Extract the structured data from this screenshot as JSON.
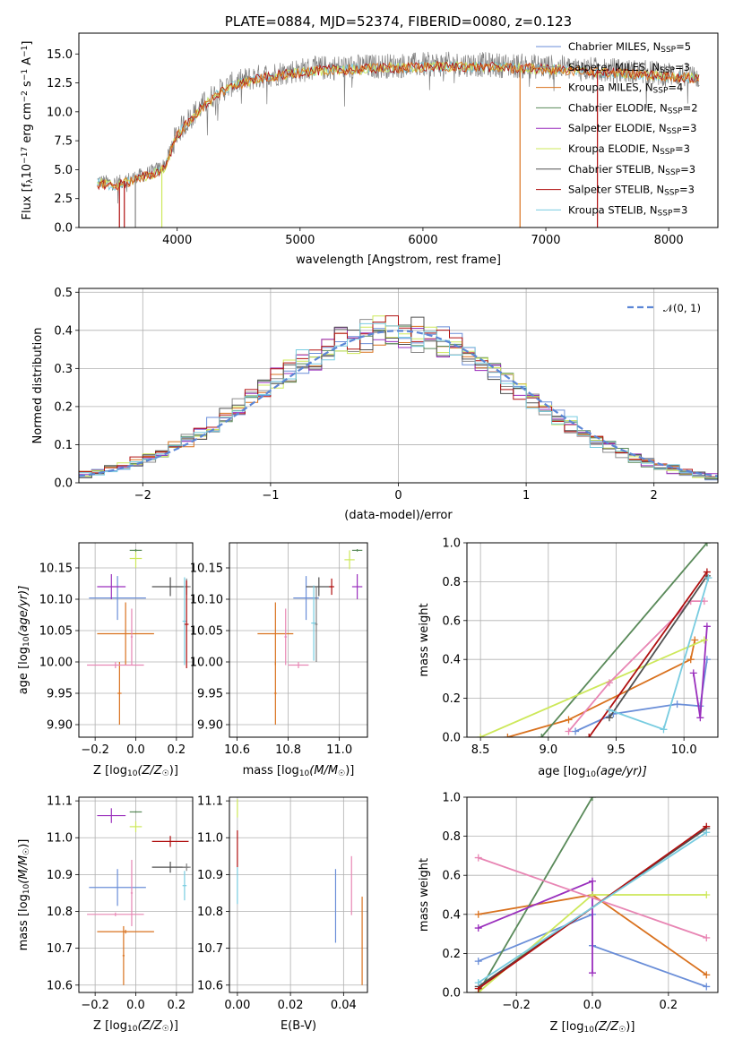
{
  "figure_title": "PLATE=0884, MJD=52374, FIBERID=0080, z=0.123",
  "colors": {
    "Chabrier MILES": "#6a8ed8",
    "Salpeter MILES": "#8c8c8c",
    "Kroupa MILES": "#d9721f",
    "Chabrier ELODIE": "#5a8a5a",
    "Salpeter ELODIE": "#9a2fbd",
    "Kroupa ELODIE": "#cde85a",
    "Chabrier STELIB": "#505050",
    "Salpeter STELIB": "#b01010",
    "Kroupa STELIB": "#78cce0",
    "pink": "#e886b4",
    "data": "#808080"
  },
  "chart_data": [
    {
      "id": "spectrum",
      "type": "line",
      "title": "PLATE=0884, MJD=52374, FIBERID=0080, z=0.123",
      "xlabel": "wavelength [Angstrom, rest frame]",
      "ylabel_main": "Flux [f",
      "ylabel_sub1": "λ",
      "ylabel_mid": "10",
      "ylabel_sup1": "−17",
      "ylabel_rest": " erg cm",
      "ylabel_sup2": "−2",
      "ylabel_rest2": " s",
      "ylabel_sup3": "−1",
      "ylabel_rest3": " A",
      "ylabel_sup4": "−1",
      "ylabel_end": "]",
      "xlim": [
        3200,
        8400
      ],
      "ylim": [
        0,
        16.8
      ],
      "xticks": [
        "4000",
        "5000",
        "6000",
        "7000",
        "8000"
      ],
      "yticks": [
        "0.0",
        "2.5",
        "5.0",
        "7.5",
        "10.0",
        "12.5",
        "15.0"
      ],
      "continuum": {
        "x": [
          3350,
          3500,
          3650,
          3800,
          3900,
          4000,
          4150,
          4300,
          4450,
          4600,
          4800,
          5000,
          5200,
          5500,
          5800,
          6100,
          6400,
          6700,
          7000,
          7300,
          7500,
          7800,
          8100,
          8250
        ],
        "y": [
          4.0,
          3.8,
          4.3,
          4.8,
          5.4,
          8.2,
          10.0,
          11.5,
          12.4,
          12.9,
          13.3,
          13.6,
          13.8,
          13.9,
          14.0,
          14.1,
          14.1,
          14.0,
          13.9,
          13.7,
          13.6,
          13.4,
          13.2,
          13.0
        ]
      },
      "legend": [
        {
          "label": "Chabrier MILES, N",
          "sub": "SSP",
          "n": "=5"
        },
        {
          "label": "Salpeter MILES, N",
          "sub": "SSP",
          "n": "=3"
        },
        {
          "label": "Kroupa MILES, N",
          "sub": "SSP",
          "n": "=4"
        },
        {
          "label": "Chabrier ELODIE, N",
          "sub": "SSP",
          "n": "=2"
        },
        {
          "label": "Salpeter ELODIE, N",
          "sub": "SSP",
          "n": "=3"
        },
        {
          "label": "Kroupa ELODIE, N",
          "sub": "SSP",
          "n": "=3"
        },
        {
          "label": "Chabrier STELIB, N",
          "sub": "SSP",
          "n": "=3"
        },
        {
          "label": "Salpeter STELIB, N",
          "sub": "SSP",
          "n": "=3"
        },
        {
          "label": "Kroupa STELIB, N",
          "sub": "SSP",
          "n": "=3"
        }
      ]
    },
    {
      "id": "residuals",
      "type": "histogram",
      "xlabel": "(data-model)/error",
      "ylabel": "Normed distribution",
      "xlim": [
        -2.5,
        2.5
      ],
      "ylim": [
        0,
        0.51
      ],
      "xticks": [
        "−2",
        "−1",
        "0",
        "1",
        "2"
      ],
      "yticks": [
        "0.0",
        "0.1",
        "0.2",
        "0.3",
        "0.4",
        "0.5"
      ],
      "legend_label": "𝒩(0, 1)",
      "bin_width": 0.1
    },
    {
      "id": "age-vs-Z",
      "type": "errorbar",
      "xlabel": "Z [log",
      "xlabel_sub": "10",
      "xlabel_rest": "(Z/Z",
      "xlabel_sub2": "☉",
      "xlabel_end": ")]",
      "ylabel": "age  [log",
      "ylabel_sub": "10",
      "ylabel_rest": "(age/yr)]",
      "xlim": [
        -0.28,
        0.28
      ],
      "ylim": [
        9.88,
        10.19
      ],
      "xticks": [
        "−0.2",
        "0.0",
        "0.2"
      ],
      "yticks": [
        "9.90",
        "9.95",
        "10.00",
        "10.05",
        "10.10",
        "10.15"
      ],
      "points": [
        {
          "x": -0.09,
          "y": 10.102,
          "xerr": 0.14,
          "yerr": 0.035,
          "c": "#6a8ed8"
        },
        {
          "x": -0.12,
          "y": 10.12,
          "xerr": 0.07,
          "yerr": 0.02,
          "c": "#9a2fbd"
        },
        {
          "x": 0.0,
          "y": 10.165,
          "xerr": 0.03,
          "yerr": 0.015,
          "c": "#cde85a"
        },
        {
          "x": 0.0,
          "y": 10.178,
          "xerr": 0.03,
          "yerr": 0.002,
          "c": "#5a8a5a"
        },
        {
          "x": 0.17,
          "y": 10.12,
          "xerr": 0.09,
          "yerr": 0.015,
          "c": "#505050"
        },
        {
          "x": 0.25,
          "y": 10.12,
          "xerr": 0.02,
          "yerr": 0.013,
          "c": "#808080"
        },
        {
          "x": 0.24,
          "y": 10.065,
          "xerr": 0.01,
          "yerr": 0.07,
          "c": "#78cce0"
        },
        {
          "x": 0.25,
          "y": 10.06,
          "xerr": 0.01,
          "yerr": 0.07,
          "c": "#b01010"
        },
        {
          "x": -0.05,
          "y": 10.045,
          "xerr": 0.14,
          "yerr": 0.05,
          "c": "#d9721f"
        },
        {
          "x": -0.08,
          "y": 9.95,
          "xerr": 0.01,
          "yerr": 0.05,
          "c": "#d9721f"
        },
        {
          "x": -0.1,
          "y": 9.995,
          "xerr": 0.14,
          "yerr": 0.005,
          "c": "#e886b4"
        },
        {
          "x": -0.02,
          "y": 10.04,
          "xerr": 0.005,
          "yerr": 0.045,
          "c": "#e886b4"
        }
      ]
    },
    {
      "id": "age-vs-mass",
      "type": "errorbar",
      "xlabel": "mass [log",
      "xlabel_sub": "10",
      "xlabel_rest": "(M/M",
      "xlabel_sub2": "☉",
      "xlabel_end": ")]",
      "xlim": [
        10.57,
        11.11
      ],
      "ylim": [
        9.88,
        10.19
      ],
      "xticks": [
        "10.6",
        "10.8",
        "11.0"
      ],
      "yticks": [
        "9.90",
        "9.95",
        "10.00",
        "10.05",
        "10.10",
        "10.15"
      ],
      "points": [
        {
          "x": 10.87,
          "y": 10.102,
          "xerr": 0.05,
          "yerr": 0.035,
          "c": "#6a8ed8"
        },
        {
          "x": 11.07,
          "y": 10.12,
          "xerr": 0.02,
          "yerr": 0.02,
          "c": "#9a2fbd"
        },
        {
          "x": 11.04,
          "y": 10.163,
          "xerr": 0.02,
          "yerr": 0.015,
          "c": "#cde85a"
        },
        {
          "x": 11.07,
          "y": 10.178,
          "xerr": 0.02,
          "yerr": 0.002,
          "c": "#5a8a5a"
        },
        {
          "x": 10.92,
          "y": 10.12,
          "xerr": 0.05,
          "yerr": 0.015,
          "c": "#505050"
        },
        {
          "x": 10.97,
          "y": 10.12,
          "xerr": 0.01,
          "yerr": 0.013,
          "c": "#b01010"
        },
        {
          "x": 10.9,
          "y": 10.062,
          "xerr": 0.01,
          "yerr": 0.06,
          "c": "#78cce0"
        },
        {
          "x": 10.75,
          "y": 10.045,
          "xerr": 0.07,
          "yerr": 0.05,
          "c": "#d9721f"
        },
        {
          "x": 10.75,
          "y": 9.95,
          "xerr": 0.005,
          "yerr": 0.05,
          "c": "#d9721f"
        },
        {
          "x": 10.84,
          "y": 9.995,
          "xerr": 0.04,
          "yerr": 0.005,
          "c": "#e886b4"
        },
        {
          "x": 10.79,
          "y": 10.04,
          "xerr": 0.005,
          "yerr": 0.045,
          "c": "#e886b4"
        },
        {
          "x": 10.91,
          "y": 10.06,
          "xerr": 0.005,
          "yerr": 0.06,
          "c": "#808080"
        }
      ]
    },
    {
      "id": "massweight-vs-age",
      "type": "line",
      "xlabel": "age  [log",
      "xlabel_sub": "10",
      "xlabel_rest": "(age/yr)]",
      "ylabel": "mass weight",
      "xlim": [
        8.4,
        10.25
      ],
      "ylim": [
        0,
        1
      ],
      "xticks": [
        "8.5",
        "9.0",
        "9.5",
        "10.0"
      ],
      "yticks": [
        "0.0",
        "0.2",
        "0.4",
        "0.6",
        "0.8",
        "1.0"
      ],
      "series": [
        {
          "c": "#6a8ed8",
          "x": [
            9.2,
            9.48,
            9.95,
            10.12,
            10.17
          ],
          "y": [
            0.03,
            0.12,
            0.17,
            0.16,
            0.4
          ]
        },
        {
          "c": "#d9721f",
          "x": [
            8.7,
            9.15,
            10.05,
            10.08
          ],
          "y": [
            0.0,
            0.09,
            0.4,
            0.5
          ]
        },
        {
          "c": "#5a8a5a",
          "x": [
            8.95,
            10.17
          ],
          "y": [
            0.0,
            1.0
          ]
        },
        {
          "c": "#9a2fbd",
          "x": [
            10.07,
            10.12,
            10.17
          ],
          "y": [
            0.33,
            0.1,
            0.57
          ]
        },
        {
          "c": "#cde85a",
          "x": [
            8.5,
            10.15
          ],
          "y": [
            0.0,
            0.5
          ]
        },
        {
          "c": "#e886b4",
          "x": [
            9.15,
            9.45,
            10.05,
            10.15
          ],
          "y": [
            0.03,
            0.28,
            0.7,
            0.7
          ]
        },
        {
          "c": "#505050",
          "x": [
            9.45,
            10.17
          ],
          "y": [
            0.1,
            0.83
          ]
        },
        {
          "c": "#b01010",
          "x": [
            9.3,
            10.17
          ],
          "y": [
            0.0,
            0.85
          ]
        },
        {
          "c": "#78cce0",
          "x": [
            9.45,
            9.85,
            10.18
          ],
          "y": [
            0.14,
            0.04,
            0.82
          ]
        }
      ]
    },
    {
      "id": "mass-vs-Z",
      "type": "errorbar",
      "xlabel": "Z [log",
      "xlabel_sub": "10",
      "xlabel_rest": "(Z/Z",
      "xlabel_sub2": "☉",
      "xlabel_end": ")]",
      "ylabel": "mass [log",
      "ylabel_sub": "10",
      "ylabel_rest": "(M/M",
      "ylabel_sub2": "☉",
      "ylabel_end": ")]",
      "xlim": [
        -0.28,
        0.28
      ],
      "ylim": [
        10.58,
        11.11
      ],
      "xticks": [
        "−0.2",
        "0.0",
        "0.2"
      ],
      "yticks": [
        "10.6",
        "10.7",
        "10.8",
        "10.9",
        "11.0",
        "11.1"
      ],
      "points": [
        {
          "x": -0.09,
          "y": 10.865,
          "xerr": 0.14,
          "yerr": 0.05,
          "c": "#6a8ed8"
        },
        {
          "x": -0.12,
          "y": 11.06,
          "xerr": 0.07,
          "yerr": 0.02,
          "c": "#9a2fbd"
        },
        {
          "x": 0.0,
          "y": 11.03,
          "xerr": 0.03,
          "yerr": 0.015,
          "c": "#cde85a"
        },
        {
          "x": 0.0,
          "y": 11.07,
          "xerr": 0.03,
          "yerr": 0.002,
          "c": "#5a8a5a"
        },
        {
          "x": 0.17,
          "y": 10.92,
          "xerr": 0.09,
          "yerr": 0.015,
          "c": "#505050"
        },
        {
          "x": 0.17,
          "y": 10.99,
          "xerr": 0.09,
          "yerr": 0.015,
          "c": "#b01010"
        },
        {
          "x": 0.25,
          "y": 10.92,
          "xerr": 0.02,
          "yerr": 0.01,
          "c": "#808080"
        },
        {
          "x": 0.24,
          "y": 10.87,
          "xerr": 0.01,
          "yerr": 0.04,
          "c": "#78cce0"
        },
        {
          "x": -0.05,
          "y": 10.745,
          "xerr": 0.14,
          "yerr": 0.005,
          "c": "#d9721f"
        },
        {
          "x": -0.06,
          "y": 10.68,
          "xerr": 0.005,
          "yerr": 0.08,
          "c": "#d9721f"
        },
        {
          "x": -0.1,
          "y": 10.792,
          "xerr": 0.14,
          "yerr": 0.005,
          "c": "#e886b4"
        },
        {
          "x": -0.02,
          "y": 10.85,
          "xerr": 0.005,
          "yerr": 0.09,
          "c": "#e886b4"
        }
      ]
    },
    {
      "id": "mass-vs-EBV",
      "type": "errorbar",
      "xlabel": "E(B-V)",
      "xlim": [
        -0.003,
        0.049
      ],
      "ylim": [
        10.58,
        11.11
      ],
      "xticks": [
        "0.00",
        "0.02",
        "0.04"
      ],
      "yticks": [
        "10.6",
        "10.7",
        "10.8",
        "10.9",
        "11.0",
        "11.1"
      ],
      "points": [
        {
          "x": 0.0,
          "y": 11.08,
          "xerr": 0,
          "yerr": 0.025,
          "c": "#cde85a"
        },
        {
          "x": 0.0,
          "y": 10.97,
          "xerr": 0,
          "yerr": 0.05,
          "c": "#b01010"
        },
        {
          "x": 0.0,
          "y": 10.87,
          "xerr": 0,
          "yerr": 0.05,
          "c": "#78cce0"
        },
        {
          "x": 0.037,
          "y": 10.815,
          "xerr": 0,
          "yerr": 0.1,
          "c": "#6a8ed8"
        },
        {
          "x": 0.043,
          "y": 10.87,
          "xerr": 0,
          "yerr": 0.08,
          "c": "#e886b4"
        },
        {
          "x": 0.047,
          "y": 10.72,
          "xerr": 0,
          "yerr": 0.12,
          "c": "#d9721f"
        }
      ]
    },
    {
      "id": "massweight-vs-Z",
      "type": "line",
      "xlabel": "Z [log",
      "xlabel_sub": "10",
      "xlabel_rest": "(Z/Z",
      "xlabel_sub2": "☉",
      "xlabel_end": ")]",
      "ylabel": "mass weight",
      "xlim": [
        -0.33,
        0.33
      ],
      "ylim": [
        0,
        1
      ],
      "xticks": [
        "−0.2",
        "0.0",
        "0.2"
      ],
      "yticks": [
        "0.0",
        "0.2",
        "0.4",
        "0.6",
        "0.8",
        "1.0"
      ],
      "series": [
        {
          "c": "#6a8ed8",
          "x": [
            -0.3,
            0.0,
            0.0,
            0.3
          ],
          "y": [
            0.16,
            0.4,
            0.24,
            0.03
          ]
        },
        {
          "c": "#d9721f",
          "x": [
            -0.3,
            0.0,
            0.3
          ],
          "y": [
            0.4,
            0.5,
            0.09
          ]
        },
        {
          "c": "#5a8a5a",
          "x": [
            -0.3,
            0.0
          ],
          "y": [
            0.0,
            1.0
          ]
        },
        {
          "c": "#9a2fbd",
          "x": [
            -0.3,
            0.0,
            0.0
          ],
          "y": [
            0.33,
            0.57,
            0.1
          ]
        },
        {
          "c": "#cde85a",
          "x": [
            -0.3,
            0.0,
            0.3
          ],
          "y": [
            0.0,
            0.5,
            0.5
          ]
        },
        {
          "c": "#e886b4",
          "x": [
            -0.3,
            0.3
          ],
          "y": [
            0.69,
            0.28
          ]
        },
        {
          "c": "#505050",
          "x": [
            -0.3,
            0.3
          ],
          "y": [
            0.03,
            0.84
          ]
        },
        {
          "c": "#b01010",
          "x": [
            -0.3,
            0.3
          ],
          "y": [
            0.02,
            0.85
          ]
        },
        {
          "c": "#78cce0",
          "x": [
            -0.3,
            0.3
          ],
          "y": [
            0.05,
            0.82
          ]
        }
      ]
    }
  ]
}
